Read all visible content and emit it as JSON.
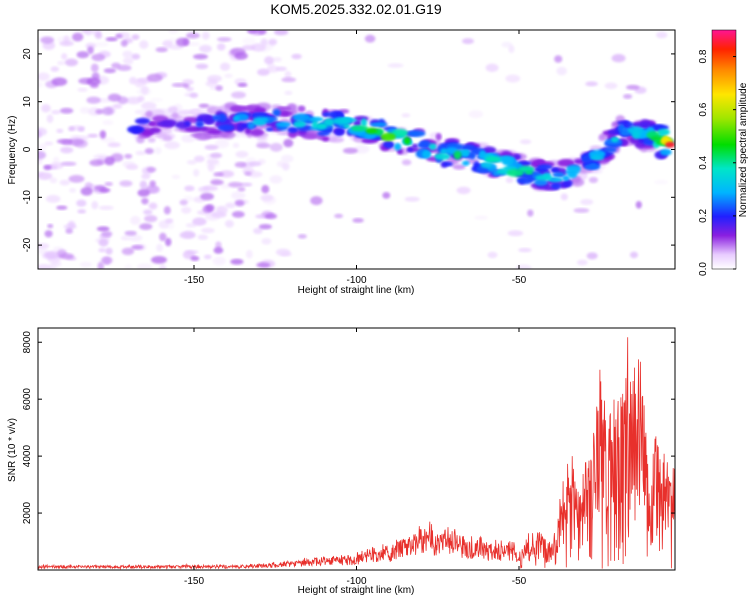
{
  "figure_title": "KOM5.2025.332.02.01.G19",
  "chart_data": [
    {
      "type": "heatmap",
      "title": "KOM5.2025.332.02.01.G19",
      "xlabel": "Height of straight line (km)",
      "ylabel": "Frequency (Hz)",
      "xlim": [
        -198,
        -2
      ],
      "ylim": [
        -25,
        25
      ],
      "x_ticks": [
        -150,
        -100,
        -50
      ],
      "y_ticks": [
        -20,
        -10,
        0,
        10,
        20
      ],
      "colorbar": {
        "label": "Normalized spectral amplitude",
        "range": [
          0,
          0.9
        ],
        "ticks": [
          0.0,
          0.2,
          0.4,
          0.6,
          0.8
        ]
      },
      "ridge": [
        {
          "x": -168,
          "f": 5,
          "a": 0.25
        },
        {
          "x": -155,
          "f": 5,
          "a": 0.18
        },
        {
          "x": -138,
          "f": 6,
          "a": 0.3
        },
        {
          "x": -120,
          "f": 6,
          "a": 0.38
        },
        {
          "x": -108,
          "f": 5,
          "a": 0.45
        },
        {
          "x": -100,
          "f": 5,
          "a": 0.4
        },
        {
          "x": -90,
          "f": 3,
          "a": 0.5
        },
        {
          "x": -80,
          "f": 1,
          "a": 0.45
        },
        {
          "x": -72,
          "f": -1,
          "a": 0.38
        },
        {
          "x": -62,
          "f": -2,
          "a": 0.42
        },
        {
          "x": -52,
          "f": -4,
          "a": 0.48
        },
        {
          "x": -45,
          "f": -5,
          "a": 0.42
        },
        {
          "x": -38,
          "f": -6,
          "a": 0.32
        },
        {
          "x": -28,
          "f": -3,
          "a": 0.3
        },
        {
          "x": -18,
          "f": 4,
          "a": 0.32
        },
        {
          "x": -10,
          "f": 3,
          "a": 0.38
        },
        {
          "x": -4,
          "f": 1,
          "a": 0.85
        }
      ]
    },
    {
      "type": "line",
      "xlabel": "Height of straight line (km)",
      "ylabel": "SNR (10 * v/v)",
      "xlim": [
        -198,
        -2
      ],
      "ylim": [
        0,
        8500
      ],
      "x_ticks": [
        -150,
        -100,
        -50
      ],
      "y_ticks": [
        2000,
        4000,
        6000,
        8000
      ],
      "series": [
        {
          "name": "SNR",
          "color": "#e8302c",
          "envelope_x": [
            -198,
            -160,
            -130,
            -120,
            -110,
            -100,
            -90,
            -80,
            -70,
            -60,
            -50,
            -45,
            -40,
            -35,
            -30,
            -25,
            -20,
            -15,
            -12,
            -10,
            -8,
            -6,
            -4,
            -2
          ],
          "envelope_y": [
            150,
            150,
            180,
            300,
            450,
            500,
            800,
            1400,
            1300,
            900,
            800,
            1400,
            900,
            3200,
            3400,
            5800,
            5800,
            7000,
            6200,
            2900,
            4800,
            4200,
            3800,
            3500
          ]
        }
      ]
    }
  ]
}
